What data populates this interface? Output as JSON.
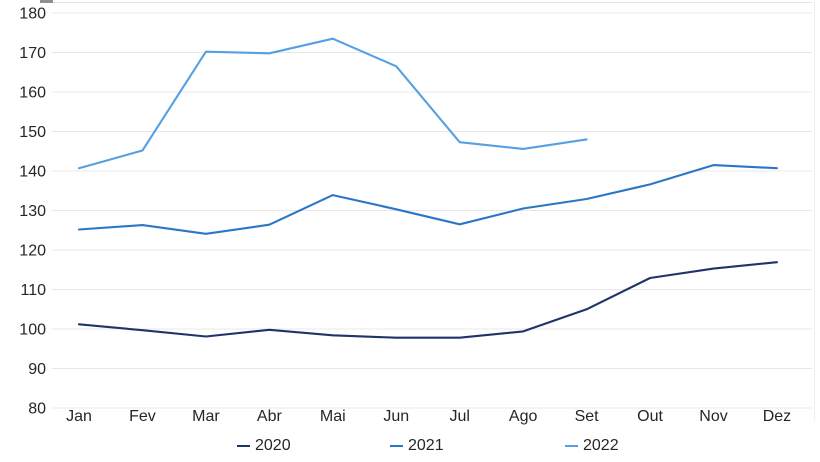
{
  "chart_data": {
    "type": "line",
    "title": "",
    "xlabel": "",
    "ylabel": "",
    "categories": [
      "Jan",
      "Fev",
      "Mar",
      "Abr",
      "Mai",
      "Jun",
      "Jul",
      "Ago",
      "Set",
      "Out",
      "Nov",
      "Dez"
    ],
    "series": [
      {
        "name": "2020",
        "color": "#1f3468",
        "values": [
          101.2,
          99.7,
          98.1,
          99.8,
          98.4,
          97.8,
          97.8,
          99.4,
          105.0,
          112.9,
          115.3,
          116.9
        ]
      },
      {
        "name": "2021",
        "color": "#2b77c5",
        "values": [
          125.2,
          126.3,
          124.1,
          126.4,
          133.9,
          130.3,
          126.5,
          130.5,
          132.9,
          136.6,
          141.5,
          140.7
        ]
      },
      {
        "name": "2022",
        "color": "#56a0e2",
        "values": [
          140.7,
          145.2,
          170.2,
          169.8,
          173.5,
          166.5,
          147.3,
          145.6,
          148.0,
          null,
          null,
          null
        ]
      }
    ],
    "ylim": [
      80,
      180
    ],
    "y_ticks": [
      180,
      170,
      160,
      150,
      140,
      130,
      120,
      110,
      100,
      90,
      80
    ],
    "grid": "horizontal",
    "legend_position": "bottom"
  },
  "colors": {
    "background": "#ffffff",
    "gridline": "#e8e8e8",
    "axis_text": "#262626"
  }
}
